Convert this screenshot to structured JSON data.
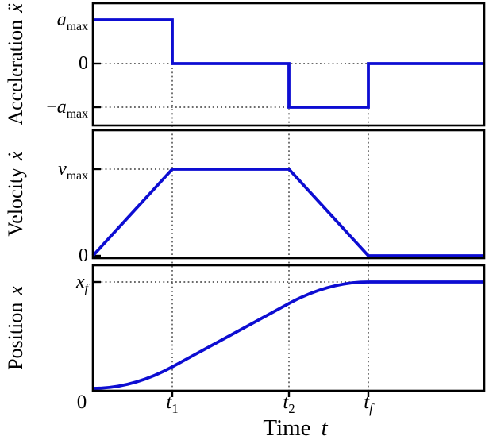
{
  "line_color": "#0d0dd2",
  "grid_color": "#3a3a3a",
  "frame_color": "#000000",
  "x_range_units": [
    0,
    4.93
  ],
  "xlabel": {
    "word": "Time",
    "symbol": "t"
  },
  "xticks": [
    {
      "roman": "0",
      "italic": "",
      "sub": "",
      "sub_italic": false,
      "t": 0,
      "dx": -14
    },
    {
      "roman": "",
      "italic": "t",
      "sub": "1",
      "sub_italic": false,
      "t": 1,
      "dx": 0
    },
    {
      "roman": "",
      "italic": "t",
      "sub": "2",
      "sub_italic": false,
      "t": 2.47,
      "dx": 0
    },
    {
      "roman": "",
      "italic": "t",
      "sub": "f",
      "sub_italic": true,
      "t": 3.47,
      "dx": 0
    }
  ],
  "v_dotted": [
    {
      "t": 1,
      "from_value": 0
    },
    {
      "t": 2.47,
      "from_value": 0
    },
    {
      "t": 3.47,
      "from_value": 0
    }
  ],
  "chart_data": [
    {
      "type": "line",
      "name": "acceleration",
      "ylabel_word": "Acceleration",
      "ylabel_symbol": "ẍ",
      "y_units": "a_max",
      "ylim": [
        -1.45,
        1.38
      ],
      "yticks": [
        {
          "roman": "",
          "italic": "a",
          "sub": "max",
          "sub_italic": false,
          "v": 1
        },
        {
          "roman": "0",
          "italic": "",
          "sub": "",
          "sub_italic": false,
          "v": 0
        },
        {
          "roman": "−",
          "italic": "a",
          "sub": "max",
          "sub_italic": false,
          "v": -1
        }
      ],
      "h_dotted": [
        {
          "v": 0,
          "t0": 0,
          "t1": 4.93
        },
        {
          "v": -1,
          "t0": 0,
          "t1": 3.47
        }
      ],
      "segments": [
        {
          "type": "polyline",
          "points": [
            [
              0,
              1
            ],
            [
              1,
              1
            ],
            [
              1,
              0
            ],
            [
              2.47,
              0
            ],
            [
              2.47,
              -1
            ],
            [
              3.47,
              -1
            ],
            [
              3.47,
              0
            ],
            [
              4.93,
              0
            ]
          ]
        }
      ]
    },
    {
      "type": "line",
      "name": "velocity",
      "ylabel_word": "Velocity",
      "ylabel_symbol": "ẋ",
      "y_units": "v_max",
      "ylim": [
        0,
        1.45
      ],
      "yticks": [
        {
          "roman": "",
          "italic": "v",
          "sub": "max",
          "sub_italic": false,
          "v": 1
        },
        {
          "roman": "0",
          "italic": "",
          "sub": "",
          "sub_italic": false,
          "v": 0
        }
      ],
      "h_dotted": [
        {
          "v": 1,
          "t0": 0,
          "t1": 2.47
        }
      ],
      "segments": [
        {
          "type": "polyline",
          "points": [
            [
              0,
              0
            ],
            [
              1,
              1
            ],
            [
              2.47,
              1
            ],
            [
              3.47,
              0
            ],
            [
              4.93,
              0
            ]
          ]
        }
      ]
    },
    {
      "type": "line",
      "name": "position",
      "ylabel_word": "Position",
      "ylabel_symbol": "x",
      "y_units": "x_f",
      "ylim": [
        0,
        1.16
      ],
      "yticks": [
        {
          "roman": "",
          "italic": "x",
          "sub": "f",
          "sub_italic": true,
          "v": 1
        }
      ],
      "h_dotted": [
        {
          "v": 1,
          "t0": 0,
          "t1": 4.93
        }
      ],
      "segments": [
        {
          "type": "parabola",
          "p0": [
            0,
            0
          ],
          "p1": [
            1,
            0.2024
          ],
          "vertex": "start"
        },
        {
          "type": "line",
          "p0": [
            1,
            0.2024
          ],
          "p1": [
            2.47,
            0.7976
          ]
        },
        {
          "type": "parabola",
          "p0": [
            2.47,
            0.7976
          ],
          "p1": [
            3.47,
            1
          ],
          "vertex": "end"
        },
        {
          "type": "line",
          "p0": [
            3.47,
            1
          ],
          "p1": [
            4.93,
            1
          ]
        }
      ]
    }
  ]
}
